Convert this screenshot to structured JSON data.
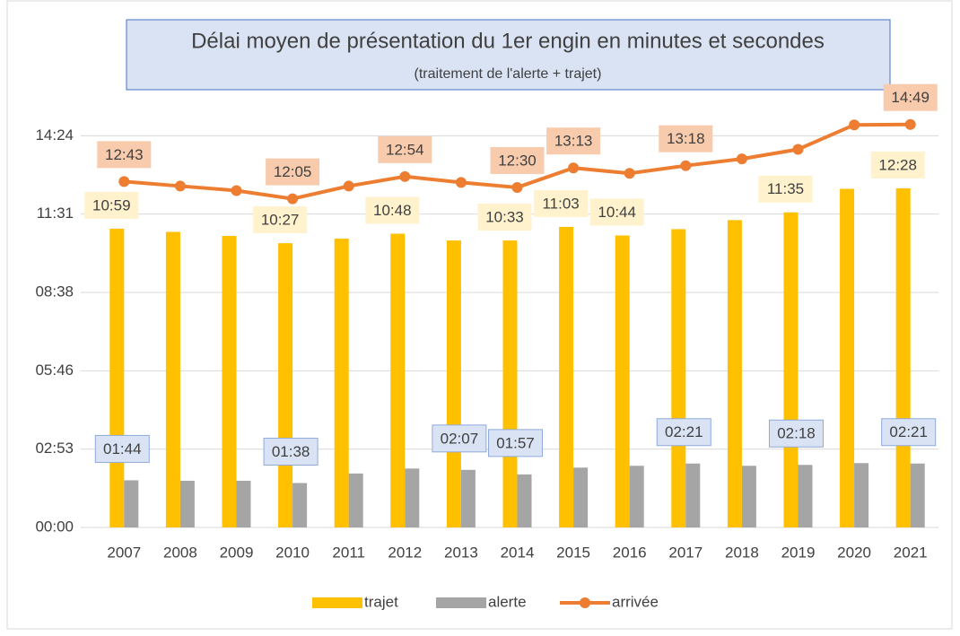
{
  "chart_data": {
    "type": "bar-line",
    "title": "Délai moyen de présentation du 1er engin en minutes et secondes",
    "subtitle": "(traitement de l'alerte + trajet)",
    "categories": [
      "2007",
      "2008",
      "2009",
      "2010",
      "2011",
      "2012",
      "2013",
      "2014",
      "2015",
      "2016",
      "2017",
      "2018",
      "2019",
      "2020",
      "2021"
    ],
    "series": [
      {
        "name": "trajet",
        "type": "bar",
        "color": "#ffc000",
        "values": [
          659,
          652,
          643,
          627,
          637,
          648,
          633,
          633,
          663,
          644,
          658,
          678,
          695,
          747,
          748
        ],
        "value_labels": [
          "10:59",
          null,
          null,
          "10:27",
          null,
          "10:48",
          null,
          "10:33",
          "11:03",
          "10:44",
          null,
          null,
          "11:35",
          null,
          "12:28"
        ]
      },
      {
        "name": "alerte",
        "type": "bar",
        "color": "#a5a5a5",
        "values": [
          104,
          103,
          103,
          98,
          119,
          130,
          127,
          117,
          132,
          136,
          141,
          136,
          138,
          142,
          141
        ],
        "value_labels": [
          "01:44",
          null,
          null,
          "01:38",
          null,
          null,
          "02:07",
          "01:57",
          null,
          null,
          "02:21",
          null,
          "02:18",
          null,
          "02:21"
        ]
      },
      {
        "name": "arrivée",
        "type": "line",
        "color": "#ed7d31",
        "values": [
          763,
          753,
          743,
          725,
          753,
          774,
          761,
          750,
          793,
          781,
          798,
          813,
          834,
          888,
          889
        ],
        "value_labels": [
          "12:43",
          null,
          null,
          "12:05",
          null,
          "12:54",
          null,
          "12:30",
          "13:13",
          null,
          "13:18",
          null,
          null,
          null,
          "14:49"
        ]
      }
    ],
    "ylim": [
      0,
      1036.8
    ],
    "yticks": [
      {
        "value": 0,
        "label": "00:00"
      },
      {
        "value": 172.8,
        "label": "02:53"
      },
      {
        "value": 345.6,
        "label": "05:46"
      },
      {
        "value": 518.4,
        "label": "08:38"
      },
      {
        "value": 691.2,
        "label": "11:31"
      },
      {
        "value": 864,
        "label": "14:24"
      }
    ],
    "grid": true,
    "legend": "bottom"
  }
}
